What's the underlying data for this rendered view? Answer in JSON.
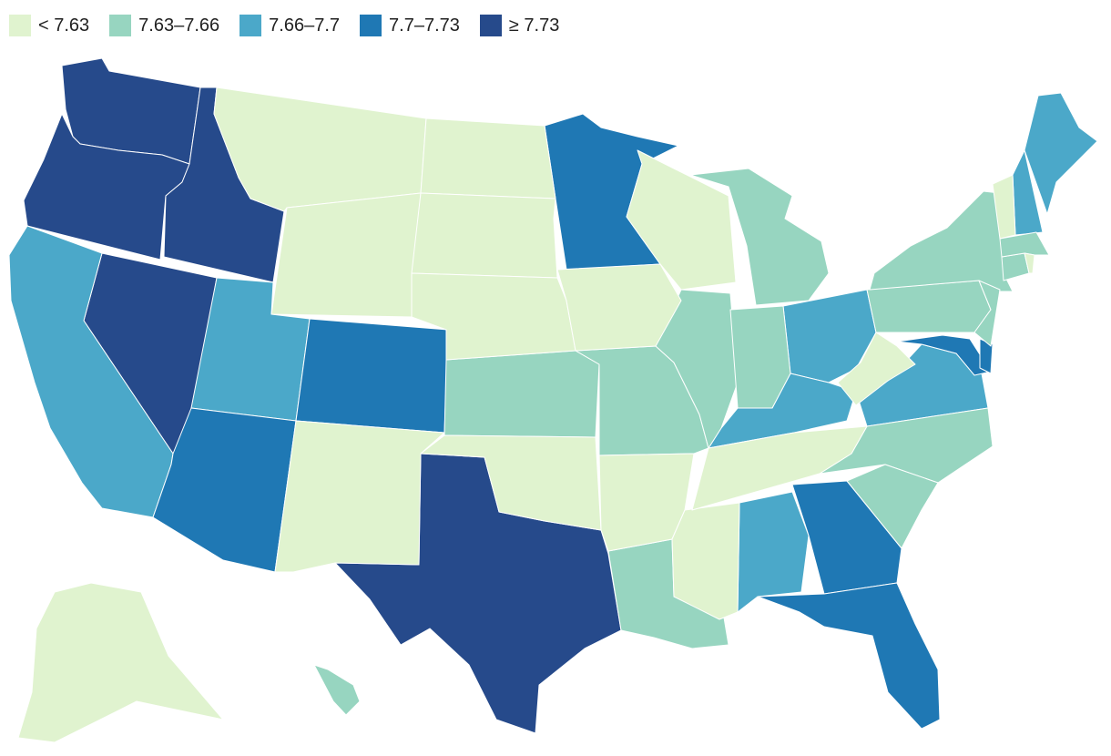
{
  "legend": {
    "items": [
      {
        "label": "< 7.63",
        "color": "#e0f3cf"
      },
      {
        "label": "7.63–7.66",
        "color": "#97d5c0"
      },
      {
        "label": "7.66–7.7",
        "color": "#4ba8c9"
      },
      {
        "label": "7.7–7.73",
        "color": "#1f78b4"
      },
      {
        "label": "≥ 7.73",
        "color": "#264a8b"
      }
    ]
  },
  "chart_data": {
    "type": "choropleth",
    "region": "United States",
    "bins": [
      {
        "label": "< 7.63",
        "color": "#e0f3cf"
      },
      {
        "label": "7.63–7.66",
        "color": "#97d5c0"
      },
      {
        "label": "7.66–7.7",
        "color": "#4ba8c9"
      },
      {
        "label": "7.7–7.73",
        "color": "#1f78b4"
      },
      {
        "label": "≥ 7.73",
        "color": "#264a8b"
      }
    ],
    "states": {
      "WA": 4,
      "OR": 4,
      "ID": 4,
      "NV": 4,
      "TX": 4,
      "CA": 2,
      "UT": 2,
      "AL": 2,
      "OH": 2,
      "KY": 2,
      "VA": 2,
      "ME": 2,
      "NH": 2,
      "AZ": 3,
      "CO": 3,
      "MN": 3,
      "GA": 3,
      "FL": 3,
      "MD": 3,
      "DE": 3,
      "KS": 1,
      "MO": 1,
      "IL": 1,
      "IN": 1,
      "MI": 1,
      "LA": 1,
      "NC": 1,
      "SC": 1,
      "PA": 1,
      "NY": 1,
      "NJ": 1,
      "CT": 1,
      "MA": 1,
      "HI": 1,
      "MT": 0,
      "WY": 0,
      "ND": 0,
      "SD": 0,
      "NE": 0,
      "NM": 0,
      "OK": 0,
      "AR": 0,
      "IA": 0,
      "WI": 0,
      "MS": 0,
      "TN": 0,
      "WV": 0,
      "VT": 0,
      "RI": 0,
      "AK": 0
    }
  }
}
